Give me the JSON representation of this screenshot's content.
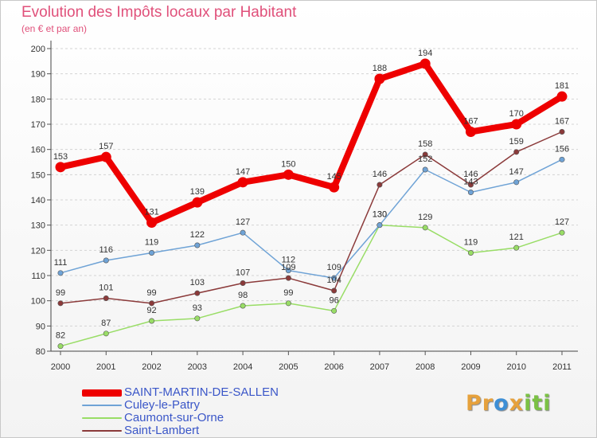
{
  "title": "Evolution des Impôts locaux par Habitant",
  "subtitle": "(en € et par an)",
  "logo": {
    "text": "Proxiti",
    "letters": [
      {
        "ch": "P",
        "color": "#e6a13c"
      },
      {
        "ch": "r",
        "color": "#e6a13c"
      },
      {
        "ch": "o",
        "color": "#3d8fd6"
      },
      {
        "ch": "x",
        "color": "#e6a13c"
      },
      {
        "ch": "i",
        "color": "#7bc144"
      },
      {
        "ch": "t",
        "color": "#7bc144"
      },
      {
        "ch": "i",
        "color": "#7bc144"
      }
    ]
  },
  "chart_data": {
    "type": "line",
    "title": "Evolution des Impôts locaux par Habitant",
    "subtitle": "(en € et par an)",
    "xlabel": "",
    "ylabel": "",
    "x": [
      "2000",
      "2001",
      "2002",
      "2003",
      "2004",
      "2005",
      "2006",
      "2007",
      "2008",
      "2009",
      "2010",
      "2011"
    ],
    "ylim": [
      80,
      200
    ],
    "yticks": [
      80,
      90,
      100,
      110,
      120,
      130,
      140,
      150,
      160,
      170,
      180,
      190,
      200
    ],
    "grid": "horizontal dashed",
    "legend_position": "bottom-left",
    "series": [
      {
        "name": "SAINT-MARTIN-DE-SALLEN",
        "color": "#ee0000",
        "values": [
          153,
          157,
          131,
          139,
          147,
          150,
          145,
          188,
          194,
          167,
          170,
          181
        ]
      },
      {
        "name": "Culey-le-Patry",
        "color": "#6fa3d6",
        "values": [
          111,
          116,
          119,
          122,
          127,
          112,
          109,
          130,
          152,
          143,
          147,
          156
        ]
      },
      {
        "name": "Caumont-sur-Orne",
        "color": "#99dd66",
        "values": [
          82,
          87,
          92,
          93,
          98,
          99,
          96,
          130,
          129,
          119,
          121,
          127
        ]
      },
      {
        "name": "Saint-Lambert",
        "color": "#8b3a3a",
        "values": [
          99,
          101,
          99,
          103,
          107,
          109,
          104,
          146,
          158,
          146,
          159,
          167
        ]
      }
    ]
  }
}
